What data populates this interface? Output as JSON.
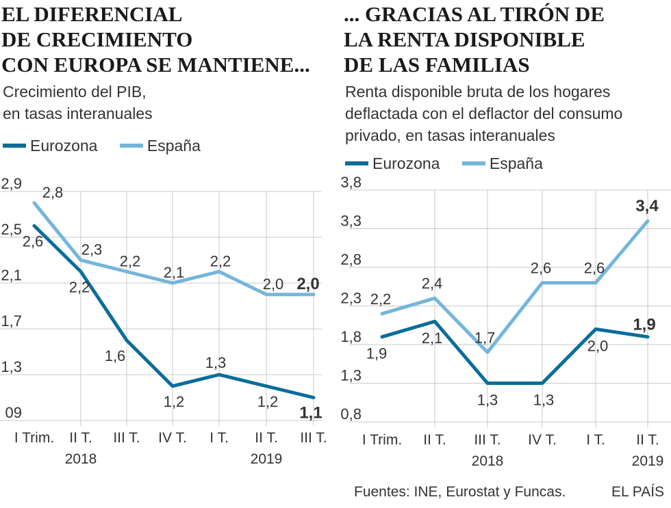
{
  "colors": {
    "eurozona": "#0a6d9b",
    "espana": "#74b6da",
    "grid": "#c8c8c8",
    "text": "#333333"
  },
  "chart_data": [
    {
      "type": "line",
      "title_lines": [
        "EL DIFERENCIAL",
        "DE CRECIMIENTO",
        "CON EUROPA SE MANTIENE..."
      ],
      "subtitle_lines": [
        "Crecimiento del PIB,",
        "en tasas interanuales"
      ],
      "legend": [
        "Eurozona",
        "España"
      ],
      "categories": [
        "I Trim.",
        "II T.",
        "III T.",
        "IV T.",
        "I T.",
        "II T.",
        "III T."
      ],
      "year_labels": [
        {
          "label": "2018",
          "category_index": 1
        },
        {
          "label": "2019",
          "category_index": 5
        }
      ],
      "y_ticks": [
        "09",
        "1,3",
        "1,7",
        "2,1",
        "2,5",
        "2,9"
      ],
      "ylim": [
        0.9,
        2.9
      ],
      "series": [
        {
          "name": "Eurozona",
          "values": [
            2.6,
            2.2,
            1.6,
            1.2,
            1.3,
            1.2,
            1.1
          ],
          "labels": [
            "2,6",
            "2,2",
            "1,6",
            "1,2",
            "1,3",
            "1,2",
            "1,1"
          ]
        },
        {
          "name": "España",
          "values": [
            2.8,
            2.3,
            2.2,
            2.1,
            2.2,
            2.0,
            2.0
          ],
          "labels": [
            "2,8",
            "2,3",
            "2,2",
            "2,1",
            "2,2",
            "2,0",
            "2,0"
          ]
        }
      ]
    },
    {
      "type": "line",
      "title_lines": [
        "... GRACIAS AL TIRÓN DE",
        "LA RENTA DISPONIBLE",
        "DE LAS FAMILIAS"
      ],
      "subtitle_lines": [
        "Renta disponible bruta de los hogares",
        "deflactada con el deflactor del consumo",
        "privado, en tasas interanuales"
      ],
      "legend": [
        "Eurozona",
        "España"
      ],
      "categories": [
        "I Trim.",
        "II T.",
        "III T.",
        "IV T.",
        "I T.",
        "II T."
      ],
      "year_labels": [
        {
          "label": "2018",
          "category_index": 2
        },
        {
          "label": "2019",
          "category_index": 5
        }
      ],
      "y_ticks": [
        "0,8",
        "1,3",
        "1,8",
        "2,3",
        "2,8",
        "3,3",
        "3,8"
      ],
      "ylim": [
        0.8,
        3.8
      ],
      "series": [
        {
          "name": "Eurozona",
          "values": [
            1.9,
            2.1,
            1.3,
            1.3,
            2.0,
            1.9
          ],
          "labels": [
            "1,9",
            "2,1",
            "1,3",
            "1,3",
            "2,0",
            "1,9"
          ]
        },
        {
          "name": "España",
          "values": [
            2.2,
            2.4,
            1.7,
            2.6,
            2.6,
            3.4
          ],
          "labels": [
            "2,2",
            "2,4",
            "1,7",
            "2,6",
            "2,6",
            "3,4"
          ]
        }
      ]
    }
  ],
  "footer": {
    "sources": "Fuentes: INE, Eurostat y Funcas.",
    "brand": "EL PAÍS"
  }
}
